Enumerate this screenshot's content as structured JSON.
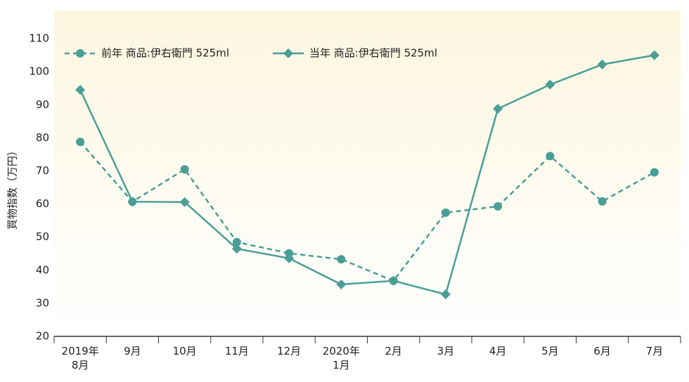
{
  "chart_data": {
    "type": "line",
    "y_label": "買物指数（万円）",
    "categories": [
      "2019年\n8月",
      "9月",
      "10月",
      "11月",
      "12月",
      "2020年\n1月",
      "2月",
      "3月",
      "4月",
      "5月",
      "6月",
      "7月"
    ],
    "series": [
      {
        "name": "前年 商品:伊右衛門 525ml",
        "color": "#4a9e96",
        "dash": true,
        "marker": "circle",
        "values": [
          78.8,
          60.7,
          70.5,
          48.5,
          45.1,
          43.3,
          36.8,
          57.4,
          59.3,
          74.5,
          60.8,
          69.6
        ]
      },
      {
        "name": "当年 商品:伊右衛門 525ml",
        "color": "#4a9e96",
        "dash": false,
        "marker": "diamond",
        "values": [
          94.5,
          60.7,
          60.6,
          46.5,
          43.6,
          35.7,
          36.8,
          32.7,
          88.8,
          96.1,
          102.2,
          105.0
        ]
      }
    ],
    "ylim": [
      20,
      118.5
    ],
    "yticks": [
      20,
      30,
      40,
      50,
      60,
      70,
      80,
      90,
      100,
      110
    ],
    "grid": false
  }
}
